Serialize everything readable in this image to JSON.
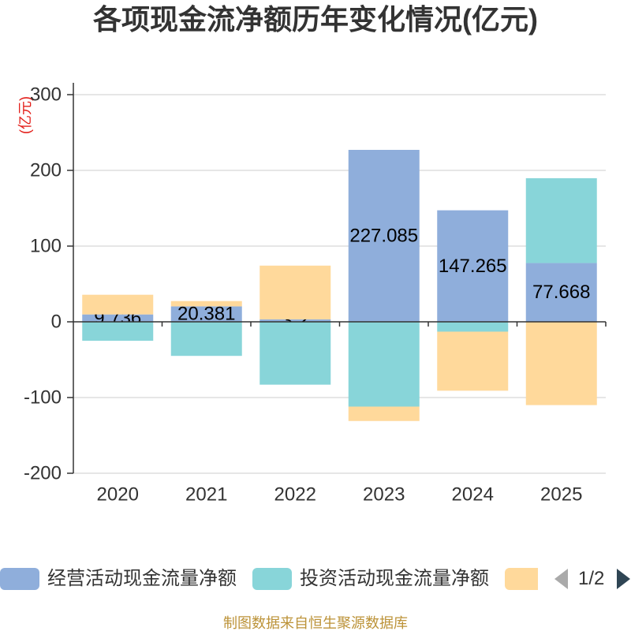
{
  "chart_data": {
    "type": "bar",
    "stacked": true,
    "title": "各项现金流净额历年变化情况(亿元)",
    "xlabel": "",
    "ylabel": "(亿元)",
    "categories": [
      "2020",
      "2021",
      "2022",
      "2023",
      "2024",
      "2025"
    ],
    "ylim": [
      -200,
      300
    ],
    "yticks": [
      300,
      200,
      100,
      0,
      -100,
      -200
    ],
    "grid": true,
    "legend_position": "bottom",
    "series": [
      {
        "name": "经营活动现金流量净额",
        "color": "#8FAEDB",
        "show_labels": true,
        "values": [
          9.736,
          20.381,
          3.2,
          227.085,
          147.265,
          77.668
        ]
      },
      {
        "name": "投资活动现金流量净额",
        "color": "#88D5D9",
        "values": [
          -25,
          -45,
          -83,
          -112,
          -13,
          112
        ]
      },
      {
        "color": "#FFD99B",
        "values": [
          26,
          7,
          71,
          -19,
          -78,
          -110
        ]
      }
    ]
  },
  "legend": {
    "page_indicator": "1/2"
  },
  "footer": {
    "source_note": "制图数据来自恒生聚源数据库"
  },
  "colors": {
    "ylabel": "#E3201B",
    "footer": "#BC9339",
    "axis": "#333333",
    "gridline": "#CCCCCC",
    "pager_active": "#2F4554",
    "pager_inactive": "#AAAAAA"
  },
  "icons": {
    "pager_prev": "triangle-left-icon",
    "pager_next": "triangle-right-icon"
  }
}
